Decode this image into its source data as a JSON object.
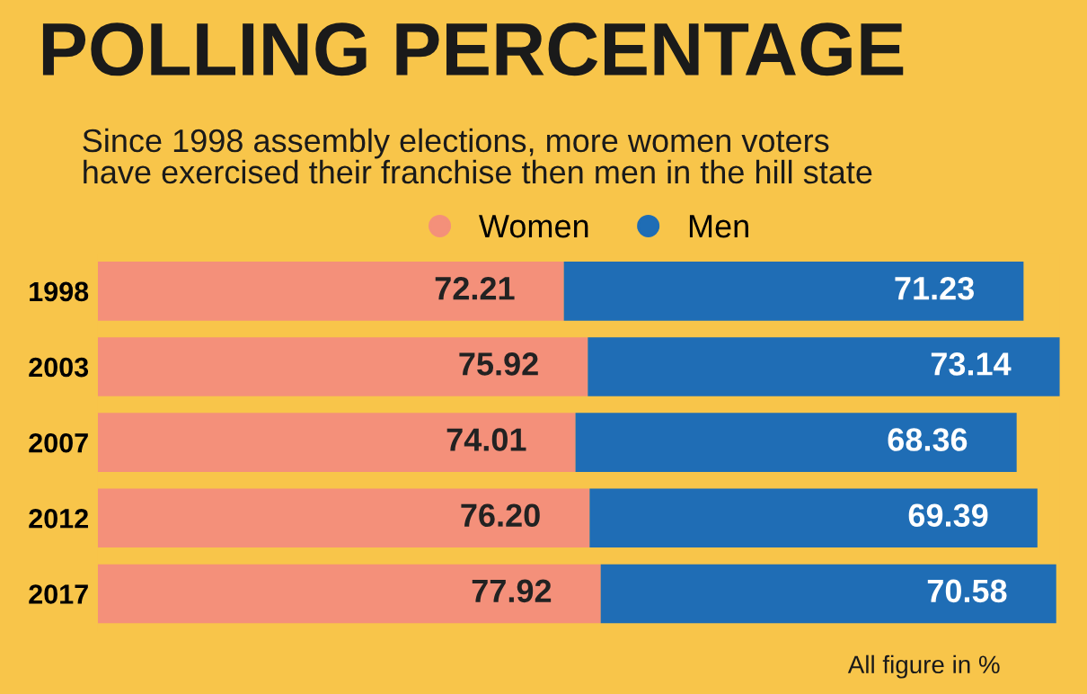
{
  "chart_data": {
    "type": "bar",
    "orientation": "horizontal",
    "stacked": true,
    "title": "POLLING PERCENTAGE",
    "subtitle": "Since 1998 assembly elections, more women voters\nhave exercised their franchise then men in the hill state",
    "categories": [
      "1998",
      "2003",
      "2007",
      "2012",
      "2017"
    ],
    "series": [
      {
        "name": "Women",
        "color": "#f4907a",
        "values": [
          72.21,
          75.92,
          74.01,
          76.2,
          77.92
        ],
        "value_labels": [
          "72.21",
          "75.92",
          "74.01",
          "76.20",
          "77.92"
        ]
      },
      {
        "name": "Men",
        "color": "#1f6db5",
        "values": [
          71.23,
          73.14,
          68.36,
          69.39,
          70.58
        ],
        "value_labels": [
          "71.23",
          "73.14",
          "68.36",
          "69.39",
          "70.58"
        ]
      }
    ],
    "legend": "top",
    "tick_labels": "y",
    "annotations": [
      "All figure in %"
    ]
  }
}
